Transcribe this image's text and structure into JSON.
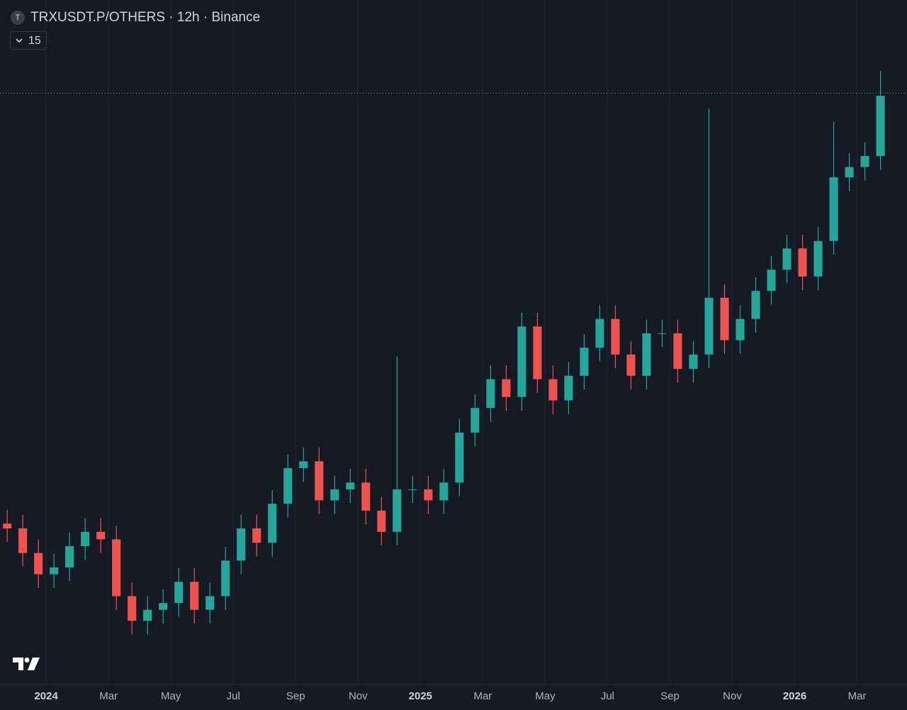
{
  "header": {
    "symbol_icon": "T",
    "title": "TRXUSDT.P/OTHERS · 12h · Binance",
    "interval_control": "15"
  },
  "chart_data": {
    "type": "candlestick",
    "x": [
      -1.25,
      -0.75,
      -0.25,
      0.25,
      0.75,
      1.25,
      1.75,
      2.25,
      2.75,
      3.25,
      3.75,
      4.25,
      4.75,
      5.25,
      5.75,
      6.25,
      6.75,
      7.25,
      7.75,
      8.25,
      8.75,
      9.25,
      9.75,
      10.25,
      10.75,
      11.25,
      11.75,
      12.25,
      12.75,
      13.25,
      13.75,
      14.25,
      14.75,
      15.25,
      15.75,
      16.25,
      16.75,
      17.25,
      17.75,
      18.25,
      18.75,
      19.25,
      19.75,
      20.25,
      20.75,
      21.25,
      21.75,
      22.25,
      22.75,
      23.25,
      23.75,
      24.25,
      24.75,
      25.25,
      25.75,
      26.25,
      26.75
    ],
    "open": [
      23.5,
      22.8,
      19.2,
      16.1,
      17.1,
      20.2,
      22.3,
      21.2,
      12.9,
      9.3,
      10.9,
      11.9,
      15.0,
      10.9,
      12.9,
      18.1,
      22.8,
      20.7,
      26.4,
      31.6,
      32.6,
      26.9,
      28.5,
      29.5,
      25.4,
      22.3,
      28.5,
      28.5,
      26.9,
      29.5,
      36.8,
      40.4,
      44.6,
      42.0,
      52.3,
      44.6,
      41.5,
      45.1,
      49.2,
      53.4,
      48.2,
      45.1,
      51.3,
      51.3,
      46.1,
      48.2,
      56.5,
      50.3,
      53.4,
      57.5,
      60.6,
      63.7,
      59.6,
      64.8,
      74.1,
      75.6,
      77.2
    ],
    "high": [
      25.5,
      24.8,
      21.2,
      19.1,
      22.2,
      24.3,
      24.3,
      23.2,
      14.9,
      12.9,
      13.9,
      17.0,
      17.0,
      14.9,
      20.1,
      24.8,
      24.8,
      28.4,
      33.6,
      34.6,
      34.6,
      30.5,
      31.5,
      31.5,
      27.4,
      47.9,
      30.5,
      30.5,
      31.5,
      38.8,
      42.4,
      46.6,
      46.6,
      54.3,
      54.3,
      46.6,
      47.1,
      51.2,
      55.4,
      55.4,
      50.2,
      53.3,
      53.3,
      53.3,
      50.2,
      84.2,
      58.5,
      55.4,
      59.5,
      62.6,
      65.7,
      65.7,
      66.8,
      82.2,
      77.6,
      79.2,
      89.6
    ],
    "low": [
      20.8,
      17.2,
      14.1,
      14.1,
      15.1,
      18.2,
      19.2,
      10.9,
      7.3,
      7.3,
      8.9,
      9.9,
      8.9,
      8.9,
      10.9,
      16.1,
      18.7,
      18.7,
      24.4,
      29.6,
      24.9,
      24.9,
      26.5,
      23.4,
      20.3,
      20.3,
      26.5,
      24.9,
      24.9,
      27.5,
      34.8,
      38.4,
      40.0,
      40.0,
      42.6,
      39.5,
      39.5,
      43.1,
      47.2,
      46.2,
      43.1,
      43.1,
      49.3,
      44.1,
      44.1,
      46.2,
      48.3,
      48.3,
      51.4,
      55.5,
      58.6,
      57.6,
      57.6,
      62.8,
      72.1,
      73.6,
      75.2
    ],
    "close": [
      22.8,
      19.2,
      16.1,
      17.1,
      20.2,
      22.3,
      21.2,
      12.9,
      9.3,
      10.9,
      11.9,
      15.0,
      10.9,
      12.9,
      18.1,
      22.8,
      20.7,
      26.4,
      31.6,
      32.6,
      26.9,
      28.5,
      29.5,
      25.4,
      22.3,
      28.5,
      28.5,
      26.9,
      29.5,
      36.8,
      40.4,
      44.6,
      42.0,
      52.3,
      44.6,
      41.5,
      45.1,
      49.2,
      53.4,
      48.2,
      45.1,
      51.3,
      51.3,
      46.1,
      48.2,
      56.5,
      50.3,
      53.4,
      57.5,
      60.6,
      63.7,
      59.6,
      64.8,
      74.1,
      75.6,
      77.2,
      86.0
    ],
    "up_color": "#26a69a",
    "down_color": "#ef5350",
    "xlim": [
      -1.48,
      27.6
    ],
    "ylim": [
      0,
      100
    ],
    "xticks": [
      {
        "value": 0,
        "label": "2024"
      },
      {
        "value": 2,
        "label": "Mar"
      },
      {
        "value": 4,
        "label": "May"
      },
      {
        "value": 6,
        "label": "Jul"
      },
      {
        "value": 8,
        "label": "Sep"
      },
      {
        "value": 10,
        "label": "Nov"
      },
      {
        "value": 12,
        "label": "2025"
      },
      {
        "value": 14,
        "label": "Mar"
      },
      {
        "value": 16,
        "label": "May"
      },
      {
        "value": 18,
        "label": "Jul"
      },
      {
        "value": 20,
        "label": "Sep"
      },
      {
        "value": 22,
        "label": "Nov"
      },
      {
        "value": 24,
        "label": "2026"
      },
      {
        "value": 26,
        "label": "Mar"
      }
    ],
    "price_line": 86.4,
    "grid": true
  }
}
